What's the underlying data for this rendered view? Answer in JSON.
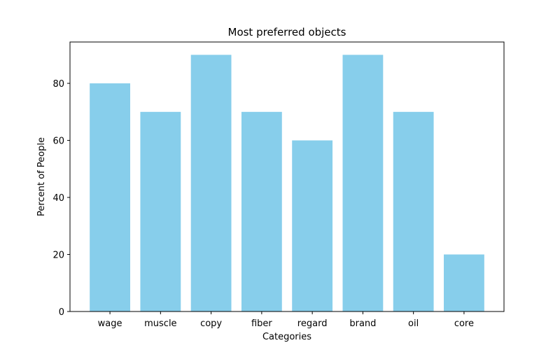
{
  "chart_data": {
    "type": "bar",
    "title": "Most preferred objects",
    "xlabel": "Categories",
    "ylabel": "Percent of People",
    "categories": [
      "wage",
      "muscle",
      "copy",
      "fiber",
      "regard",
      "brand",
      "oil",
      "core"
    ],
    "values": [
      80,
      70,
      90,
      70,
      60,
      90,
      70,
      20
    ],
    "ylim": [
      0,
      94.5
    ],
    "yticks": [
      0,
      20,
      40,
      60,
      80
    ],
    "bar_color": "#87CEEB",
    "grid": false,
    "legend": "none"
  }
}
